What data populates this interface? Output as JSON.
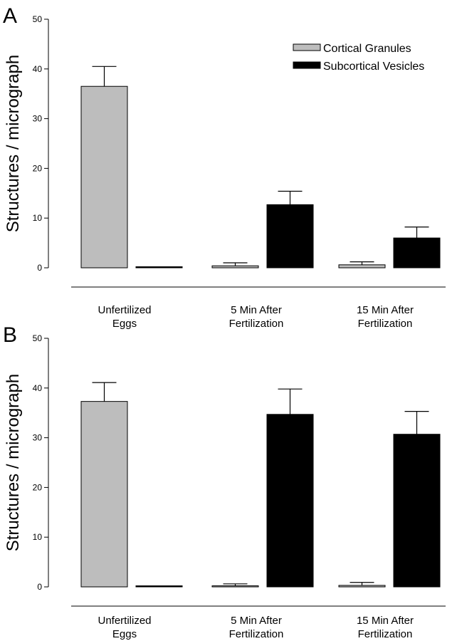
{
  "legend": {
    "position": "top-right",
    "entries": [
      {
        "label": "Cortical Granules",
        "color": "#bdbdbd"
      },
      {
        "label": "Subcortical Vesicles",
        "color": "#000000"
      }
    ]
  },
  "chart_data": [
    {
      "type": "bar",
      "panel_label": "A",
      "ylabel": "Structures / micrograph",
      "ylim": [
        0,
        50
      ],
      "yticks": [
        0,
        10,
        20,
        30,
        40,
        50
      ],
      "categories": [
        [
          "Unfertilized",
          "Eggs"
        ],
        [
          "5 Min After",
          "Fertilization"
        ],
        [
          "15 Min After",
          "Fertilization"
        ]
      ],
      "series": [
        {
          "name": "Cortical Granules",
          "color": "#bdbdbd",
          "values": [
            36.5,
            0.4,
            0.6
          ],
          "errors": [
            4.0,
            0.6,
            0.6
          ]
        },
        {
          "name": "Subcortical Vesicles",
          "color": "#000000",
          "values": [
            0.2,
            12.7,
            6.0
          ],
          "errors": [
            0,
            2.7,
            2.2
          ]
        }
      ],
      "legend": "top-right",
      "grid": false
    },
    {
      "type": "bar",
      "panel_label": "B",
      "ylabel": "Structures / micrograph",
      "ylim": [
        0,
        50
      ],
      "yticks": [
        0,
        10,
        20,
        30,
        40,
        50
      ],
      "categories": [
        [
          "Unfertilized",
          "Eggs"
        ],
        [
          "5 Min After",
          "Fertilization"
        ],
        [
          "15 Min After",
          "Fertilization"
        ]
      ],
      "series": [
        {
          "name": "Cortical Granules",
          "color": "#bdbdbd",
          "values": [
            37.3,
            0.2,
            0.3
          ],
          "errors": [
            3.8,
            0.4,
            0.6
          ]
        },
        {
          "name": "Subcortical Vesicles",
          "color": "#000000",
          "values": [
            0.2,
            34.7,
            30.7
          ],
          "errors": [
            0,
            5.1,
            4.6
          ]
        }
      ],
      "grid": false
    }
  ]
}
